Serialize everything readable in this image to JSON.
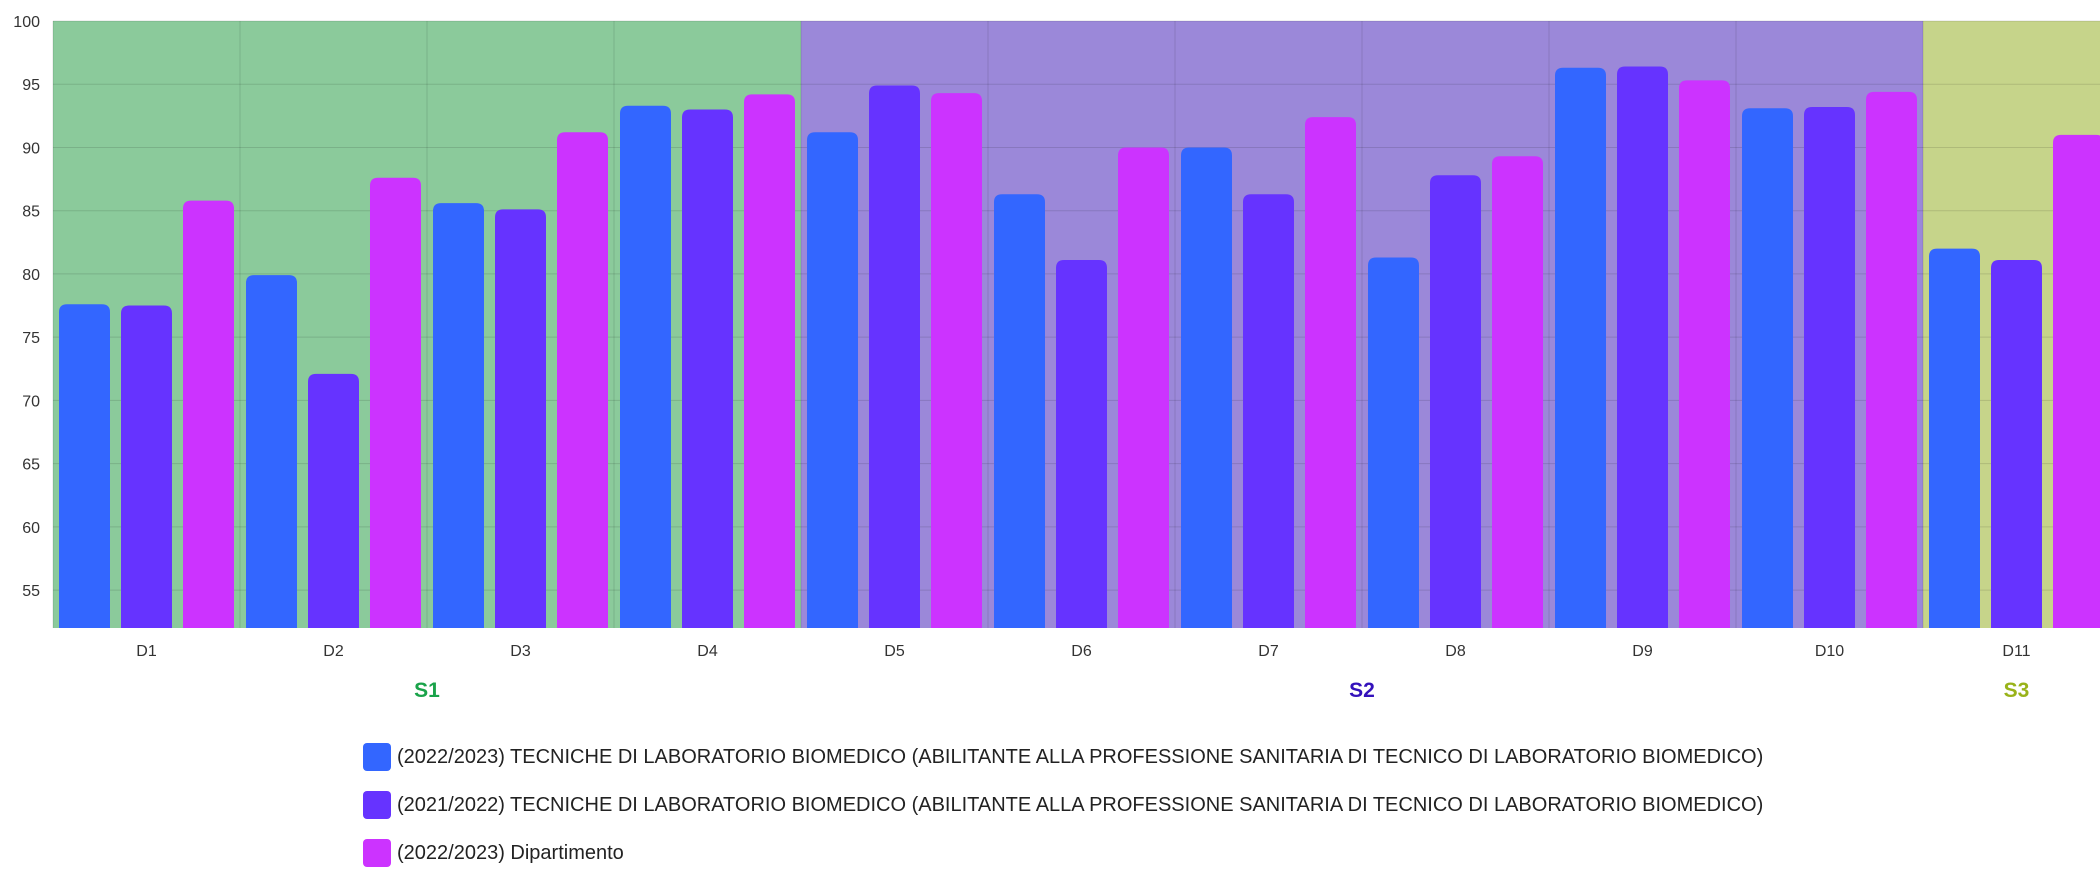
{
  "chart_data": {
    "type": "bar",
    "categories": [
      "D1",
      "D2",
      "D3",
      "D4",
      "D5",
      "D6",
      "D7",
      "D8",
      "D9",
      "D10",
      "D11"
    ],
    "series": [
      {
        "name": "(2022/2023) TECNICHE DI LABORATORIO BIOMEDICO (ABILITANTE ALLA PROFESSIONE SANITARIA DI TECNICO DI LABORATORIO BIOMEDICO)",
        "color": "#3366ff",
        "values": [
          77.6,
          79.9,
          85.6,
          93.3,
          91.2,
          86.3,
          90.0,
          81.3,
          96.3,
          93.1,
          82.0
        ]
      },
      {
        "name": "(2021/2022) TECNICHE DI LABORATORIO BIOMEDICO (ABILITANTE ALLA PROFESSIONE SANITARIA DI TECNICO DI LABORATORIO BIOMEDICO)",
        "color": "#6633ff",
        "values": [
          77.5,
          72.1,
          85.1,
          93.0,
          94.9,
          81.1,
          86.3,
          87.8,
          96.4,
          93.2,
          81.1
        ]
      },
      {
        "name": "(2022/2023) Dipartimento",
        "color": "#cc33ff",
        "values": [
          85.8,
          87.6,
          91.2,
          94.2,
          94.3,
          90.0,
          92.4,
          89.3,
          95.3,
          94.4,
          91.0
        ]
      }
    ],
    "ylim": [
      52,
      100
    ],
    "yticks": [
      55,
      60,
      65,
      70,
      75,
      80,
      85,
      90,
      95,
      100
    ],
    "groups": [
      {
        "label": "S1",
        "color": "#8bca9b",
        "label_color": "#1aa34a",
        "categories": [
          "D1",
          "D2",
          "D3",
          "D4"
        ]
      },
      {
        "label": "S2",
        "color": "#9b88d9",
        "label_color": "#3311bb",
        "categories": [
          "D5",
          "D6",
          "D7",
          "D8",
          "D9",
          "D10"
        ]
      },
      {
        "label": "S3",
        "color": "#c6d48a",
        "label_color": "#99b31a",
        "categories": [
          "D11"
        ]
      }
    ],
    "grid": true,
    "legend_position": "bottom"
  }
}
